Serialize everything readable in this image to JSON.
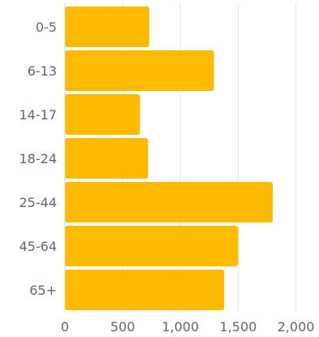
{
  "chart_data": {
    "type": "bar",
    "orientation": "horizontal",
    "categories": [
      "0-5",
      "6-13",
      "14-17",
      "18-24",
      "25-44",
      "45-64",
      "65+"
    ],
    "values": [
      730,
      1290,
      650,
      720,
      1800,
      1500,
      1380
    ],
    "xlim": [
      0,
      2200
    ],
    "xticks": [
      0,
      500,
      1000,
      1500,
      2000
    ],
    "xtick_labels": [
      "0",
      "500",
      "1,000",
      "1,500",
      "2,000"
    ],
    "grid": true,
    "bar_color": "#FDBB00",
    "grid_color": "#e6e6e6",
    "axis_color": "#cccccc"
  }
}
